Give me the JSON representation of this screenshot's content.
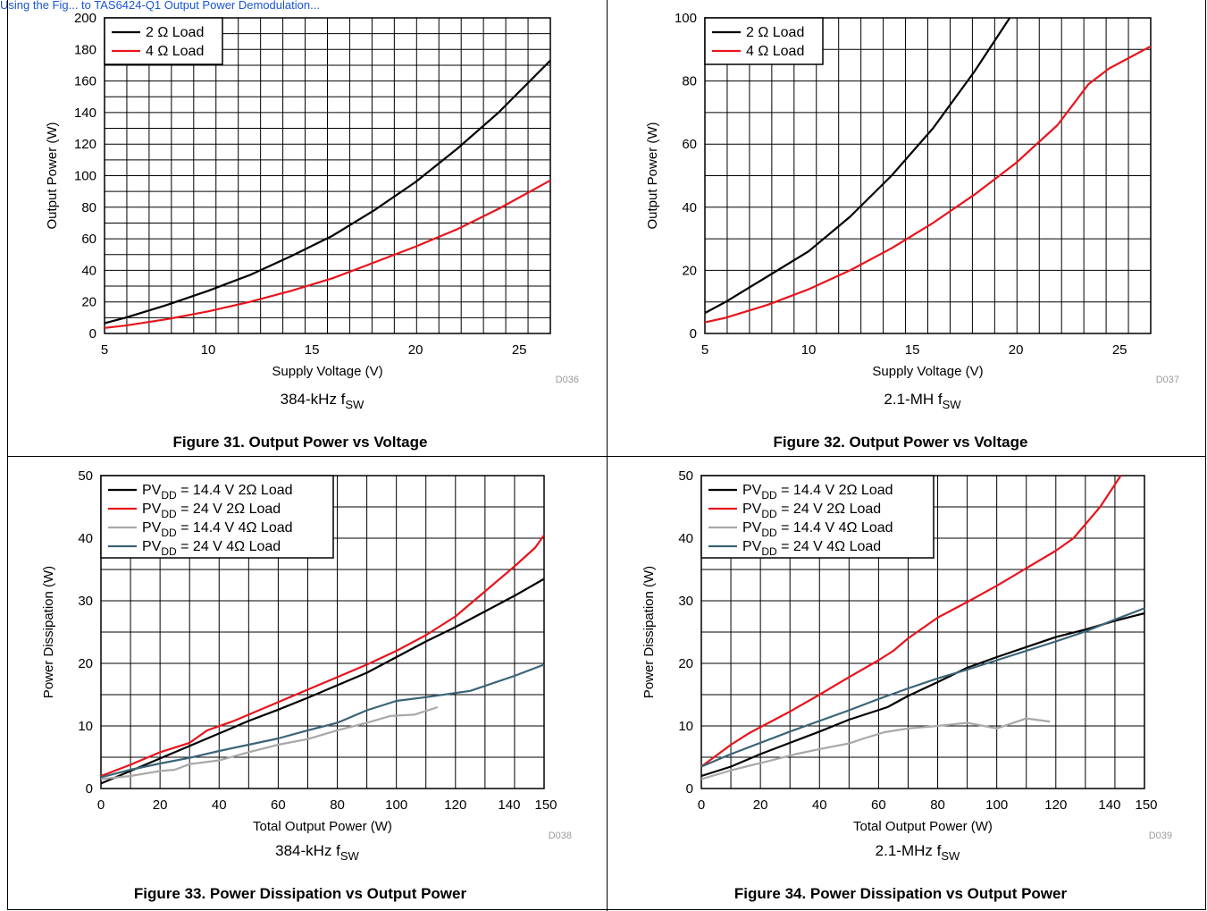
{
  "top_link": "Using the Fig... to TAS6424-Q1 Output Power Demodulation...",
  "panels": [
    {
      "id": "fig31",
      "origin": [
        0,
        0
      ],
      "caption": "Figure 31. Output Power vs Voltage",
      "subtitle_main": "384-kHz f",
      "subtitle_sub": "SW",
      "code": "D036",
      "chart_data": {
        "type": "line",
        "xlabel": "Supply Voltage (V)",
        "ylabel": "Output Power (W)",
        "xlim": [
          5,
          26.5
        ],
        "ylim": [
          0,
          200
        ],
        "xticks": [
          5,
          10,
          15,
          20,
          25
        ],
        "yticks": [
          0,
          20,
          40,
          60,
          80,
          100,
          120,
          140,
          160,
          180,
          200
        ],
        "legend": [
          "2 Ω Load",
          "4 Ω Load"
        ],
        "series": [
          {
            "name": "2 Ω Load",
            "color": "#000000",
            "x": [
              5,
              6,
              8,
              10,
              12,
              14,
              16,
              18,
              20,
              22,
              24,
              26.5
            ],
            "y": [
              6.5,
              10,
              18,
              27,
              37,
              49,
              62,
              78,
              96,
              117,
              140,
              173
            ]
          },
          {
            "name": "4 Ω Load",
            "color": "#e8141c",
            "x": [
              5,
              6,
              8,
              10,
              12,
              14,
              16,
              18,
              20,
              22,
              24,
              26.5
            ],
            "y": [
              3.5,
              5,
              9,
              14,
              20,
              27,
              35,
              45,
              55,
              66,
              79,
              97
            ]
          }
        ]
      }
    },
    {
      "id": "fig32",
      "origin": [
        672,
        0
      ],
      "caption": "Figure 32. Output Power vs Voltage",
      "subtitle_main": "2.1-MH f",
      "subtitle_sub": "SW",
      "code": "D037",
      "chart_data": {
        "type": "line",
        "xlabel": "Supply Voltage (V)",
        "ylabel": "Output Power (W)",
        "xlim": [
          5,
          26.5
        ],
        "ylim": [
          0,
          100
        ],
        "xticks": [
          5,
          10,
          15,
          20,
          25
        ],
        "yticks": [
          0,
          20,
          40,
          60,
          80,
          100
        ],
        "legend": [
          "2 Ω Load",
          "4 Ω Load"
        ],
        "series": [
          {
            "name": "2 Ω Load",
            "color": "#000000",
            "x": [
              5,
              6,
              8,
              10,
              12,
              14,
              16,
              18,
              19.7
            ],
            "y": [
              6.5,
              10,
              18,
              26,
              37,
              50,
              65,
              83,
              100
            ]
          },
          {
            "name": "4 Ω Load",
            "color": "#e8141c",
            "x": [
              5,
              6,
              8,
              10,
              12,
              14,
              16,
              18,
              20,
              22,
              23.5,
              24.5,
              26.5
            ],
            "y": [
              3.5,
              5,
              9,
              14,
              20,
              27,
              35,
              44,
              54,
              66,
              79,
              84,
              91
            ]
          }
        ]
      }
    },
    {
      "id": "fig33",
      "origin": [
        0,
        511
      ],
      "caption": "Figure 33. Power Dissipation vs Output Power",
      "subtitle_main": "384-kHz f",
      "subtitle_sub": "SW",
      "code": "D038",
      "chart_data": {
        "type": "line",
        "xlabel": "Total Output Power (W)",
        "ylabel": "Power Dissipation (W)",
        "xlim": [
          0,
          150
        ],
        "ylim": [
          0,
          50
        ],
        "xticks": [
          0,
          20,
          40,
          60,
          80,
          100,
          120,
          140,
          150
        ],
        "yticks": [
          0,
          10,
          20,
          30,
          40,
          50
        ],
        "legend": [
          {
            "pre": "PV",
            "sub": "DD",
            "post": " = 14.4 V  2Ω Load"
          },
          {
            "pre": "PV",
            "sub": "DD",
            "post": " = 24 V  2Ω Load"
          },
          {
            "pre": "PV",
            "sub": "DD",
            "post": " = 14.4 V  4Ω Load"
          },
          {
            "pre": "PV",
            "sub": "DD",
            "post": " = 24 V  4Ω Load"
          }
        ],
        "series": [
          {
            "name": "PVDD = 14.4 V 2Ω Load",
            "color": "#000000",
            "x": [
              0,
              10,
              20,
              30,
              40,
              50,
              60,
              70,
              80,
              90,
              100,
              110,
              120,
              130,
              140,
              150
            ],
            "y": [
              0.8,
              2.8,
              4.8,
              6.8,
              8.8,
              10.8,
              12.6,
              14.5,
              16.5,
              18.5,
              21,
              23.5,
              25.8,
              28.3,
              30.8,
              33.5
            ]
          },
          {
            "name": "PVDD = 24 V 2Ω Load",
            "color": "#e8141c",
            "x": [
              0,
              10,
              20,
              30,
              36,
              45,
              60,
              75,
              90,
              100,
              110,
              120,
              130,
              140,
              147,
              150
            ],
            "y": [
              2,
              3.8,
              5.8,
              7.3,
              9.3,
              10.8,
              13.8,
              16.8,
              19.8,
              22,
              24.5,
              27.5,
              31.5,
              35.5,
              38.5,
              40.5
            ]
          },
          {
            "name": "PVDD = 14.4 V 4Ω Load",
            "color": "#a8a8a8",
            "x": [
              0,
              10,
              20,
              25,
              30,
              40,
              50,
              60,
              70,
              80,
              90,
              98,
              106,
              114
            ],
            "y": [
              1.5,
              2,
              2.8,
              3,
              3.9,
              4.5,
              5.8,
              7,
              7.9,
              9.3,
              10.5,
              11.6,
              11.8,
              13
            ]
          },
          {
            "name": "PVDD = 24 V 4Ω Load",
            "color": "#3a6478",
            "x": [
              0,
              10,
              20,
              30,
              40,
              50,
              60,
              70,
              80,
              90,
              100,
              110,
              125,
              140,
              150
            ],
            "y": [
              1.8,
              3,
              4,
              4.9,
              6,
              7,
              8,
              9.3,
              10.5,
              12.5,
              14,
              14.6,
              15.6,
              18,
              19.8
            ]
          }
        ]
      }
    },
    {
      "id": "fig34",
      "origin": [
        672,
        511
      ],
      "caption": "Figure 34. Power Dissipation vs Output Power",
      "subtitle_main": "2.1-MHz f",
      "subtitle_sub": "SW",
      "code": "D039",
      "chart_data": {
        "type": "line",
        "xlabel": "Total Output Power (W)",
        "ylabel": "Power Dissipation (W)",
        "xlim": [
          0,
          150
        ],
        "ylim": [
          0,
          50
        ],
        "xticks": [
          0,
          20,
          40,
          60,
          80,
          100,
          120,
          140,
          150
        ],
        "yticks": [
          0,
          10,
          20,
          30,
          40,
          50
        ],
        "legend": [
          {
            "pre": "PV",
            "sub": "DD",
            "post": " = 14.4 V  2Ω Load"
          },
          {
            "pre": "PV",
            "sub": "DD",
            "post": " = 24 V  2Ω Load"
          },
          {
            "pre": "PV",
            "sub": "DD",
            "post": " = 14.4 V  4Ω Load"
          },
          {
            "pre": "PV",
            "sub": "DD",
            "post": " = 24 V  4Ω Load"
          }
        ],
        "series": [
          {
            "name": "PVDD = 14.4 V 2Ω Load",
            "color": "#000000",
            "x": [
              0,
              10,
              20,
              30,
              40,
              50,
              63,
              70,
              80,
              90,
              100,
              110,
              120,
              130,
              140,
              150
            ],
            "y": [
              2,
              3.5,
              5.5,
              7.3,
              9.1,
              11,
              13,
              14.8,
              17,
              19.3,
              21,
              22.6,
              24.2,
              25.4,
              26.8,
              28
            ]
          },
          {
            "name": "PVDD = 24 V 2Ω Load",
            "color": "#e8141c",
            "x": [
              0,
              10,
              16,
              20,
              30,
              40,
              50,
              60,
              65,
              70,
              80,
              90,
              100,
              110,
              120,
              126,
              135,
              142
            ],
            "y": [
              3.5,
              7,
              8.8,
              9.8,
              12.3,
              15,
              17.8,
              20.5,
              22,
              24,
              27.3,
              29.8,
              32.4,
              35.2,
              38,
              40,
              45,
              50
            ]
          },
          {
            "name": "PVDD = 14.4 V 4Ω Load",
            "color": "#a8a8a8",
            "x": [
              0,
              10,
              15,
              22,
              32,
              40,
              50,
              55,
              62,
              70,
              80,
              90,
              100,
              110,
              118
            ],
            "y": [
              1.5,
              2.9,
              3.5,
              4.3,
              5.5,
              6.3,
              7.2,
              8,
              9,
              9.6,
              10,
              10.5,
              9.6,
              11.2,
              10.7
            ]
          },
          {
            "name": "PVDD = 24 V 4Ω Load",
            "color": "#3a6478",
            "x": [
              0,
              10,
              20,
              30,
              40,
              50,
              60,
              70,
              80,
              90,
              100,
              110,
              120,
              130,
              140,
              150
            ],
            "y": [
              3.5,
              5.5,
              7.3,
              9.1,
              10.8,
              12.5,
              14.3,
              16,
              17.6,
              19,
              20.5,
              22,
              23.5,
              25.1,
              27,
              28.8
            ]
          }
        ]
      }
    }
  ]
}
